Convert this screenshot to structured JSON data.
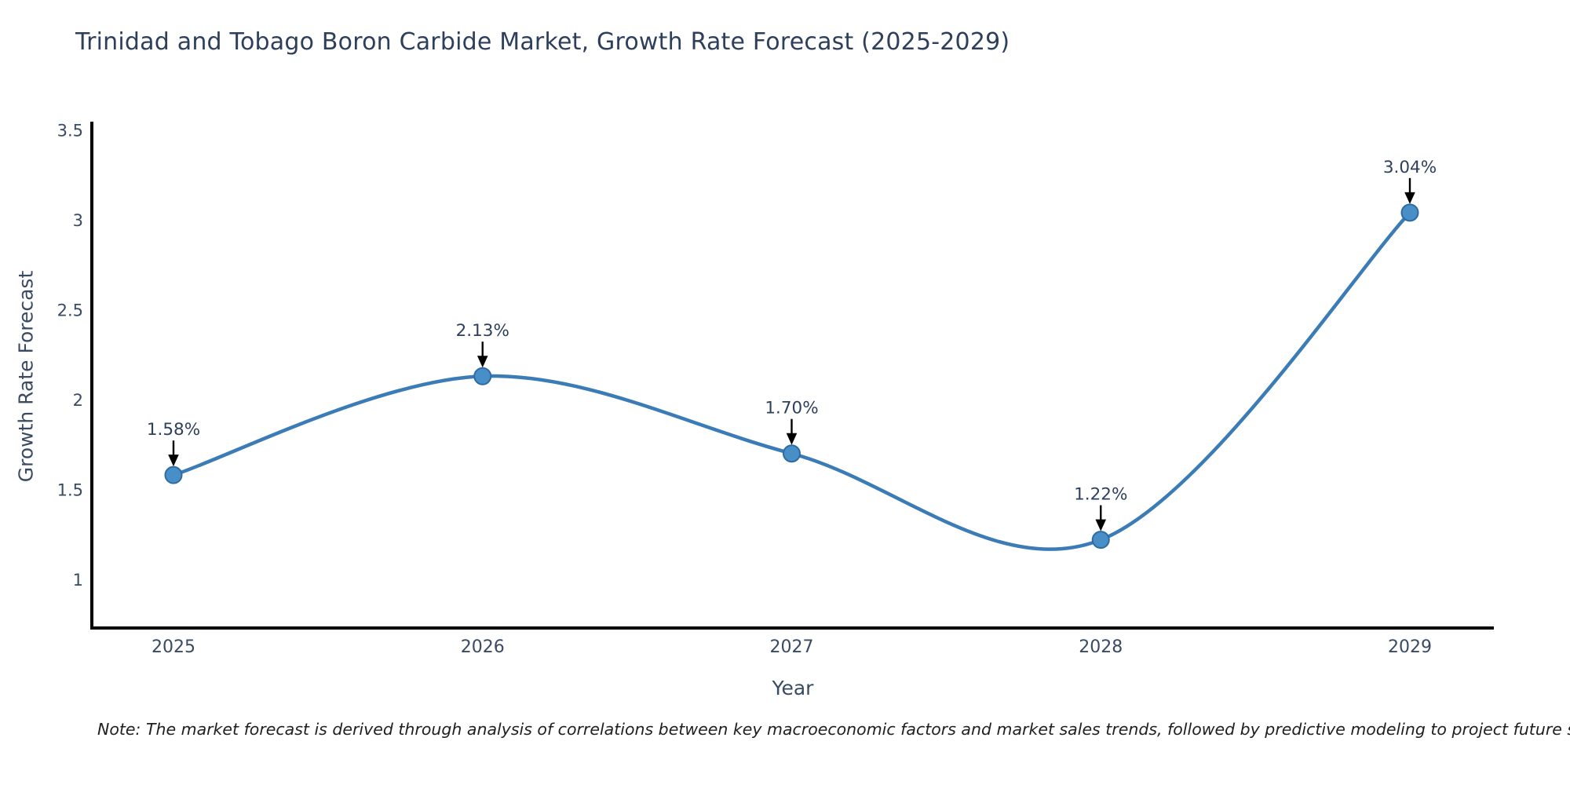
{
  "title": "Trinidad and Tobago Boron Carbide Market, Growth Rate Forecast (2025-2029)",
  "note": "Note: The market forecast is derived through analysis of correlations between key macroeconomic factors and market sales trends, followed by predictive modeling to project future sales",
  "chart_data": {
    "type": "line",
    "title": "Trinidad and Tobago Boron Carbide Market, Growth Rate Forecast (2025-2029)",
    "xlabel": "Year",
    "ylabel": "Growth Rate Forecast",
    "x": [
      2025,
      2026,
      2027,
      2028,
      2029
    ],
    "values": [
      1.58,
      2.13,
      1.7,
      1.22,
      3.04
    ],
    "point_labels": [
      "1.58%",
      "2.13%",
      "1.70%",
      "1.22%",
      "3.04%"
    ],
    "yticks": [
      1,
      1.5,
      2,
      2.5,
      3,
      3.5
    ],
    "ylim": [
      0.72,
      3.65
    ],
    "grid": false,
    "legend": false,
    "line_style": "smooth spline with circular markers and black value-label arrows",
    "colors": {
      "line": "#3c7cb6",
      "marker_fill": "#478fc6",
      "marker_edge": "#2f6ba3",
      "text": "#2e3f5c",
      "tick_text": "#3a4a63",
      "axis": "#000000",
      "annotation_arrow": "#000000",
      "background": "#ffffff"
    }
  }
}
